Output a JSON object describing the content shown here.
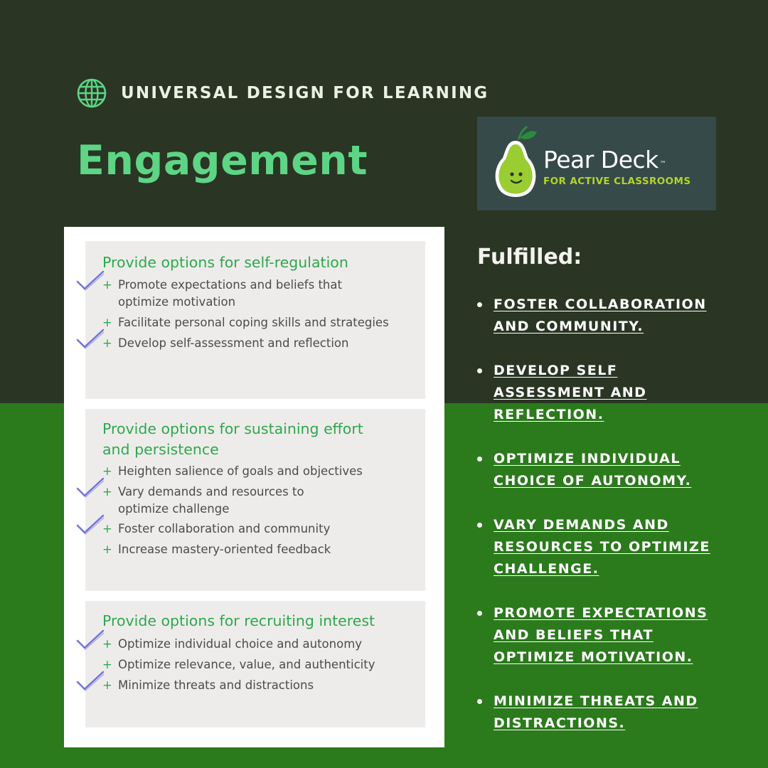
{
  "header": {
    "icon": "globe-icon",
    "label": "UNIVERSAL DESIGN FOR LEARNING"
  },
  "title": "Engagement",
  "logo": {
    "brand_name": "Pear Deck",
    "trademark": "™",
    "tagline": "FOR ACTIVE CLASSROOMS",
    "colors": {
      "pear": "#9acd32",
      "leaf": "#2b8a3e",
      "background": "#364a49",
      "tagline": "#b4d42a"
    }
  },
  "udl_panels": [
    {
      "heading_lines": [
        "Provide options for self-regulation"
      ],
      "items": [
        {
          "lines": [
            "Promote expectations and beliefs that",
            "optimize motivation"
          ],
          "checked": true
        },
        {
          "lines": [
            "Facilitate personal coping skills and strategies"
          ],
          "checked": false
        },
        {
          "lines": [
            "Develop self-assessment and reflection"
          ],
          "checked": true
        }
      ]
    },
    {
      "heading_lines": [
        "Provide options for sustaining effort",
        "and persistence"
      ],
      "items": [
        {
          "lines": [
            "Heighten salience of goals and objectives"
          ],
          "checked": false
        },
        {
          "lines": [
            "Vary demands and resources to",
            "optimize challenge"
          ],
          "checked": true
        },
        {
          "lines": [
            "Foster collaboration and community"
          ],
          "checked": true
        },
        {
          "lines": [
            "Increase mastery-oriented feedback"
          ],
          "checked": false
        }
      ]
    },
    {
      "heading_lines": [
        "Provide options for recruiting interest"
      ],
      "items": [
        {
          "lines": [
            "Optimize individual choice and autonomy"
          ],
          "checked": true
        },
        {
          "lines": [
            "Optimize relevance, value, and authenticity"
          ],
          "checked": false
        },
        {
          "lines": [
            "Minimize threats and distractions"
          ],
          "checked": true
        }
      ]
    }
  ],
  "bullet_symbol": "+",
  "fulfilled": {
    "title": "Fulfilled:",
    "items": [
      {
        "lines": [
          "FOSTER COLLABORATION",
          "AND COMMUNITY."
        ]
      },
      {
        "lines": [
          "DEVELOP SELF",
          "ASSESSMENT AND",
          "REFLECTION."
        ]
      },
      {
        "lines": [
          "OPTIMIZE INDIVIDUAL",
          "CHOICE OF AUTONOMY."
        ]
      },
      {
        "lines": [
          "VARY DEMANDS AND",
          "RESOURCES TO OPTIMIZE",
          "CHALLENGE."
        ]
      },
      {
        "lines": [
          "PROMOTE EXPECTATIONS",
          "AND BELIEFS THAT",
          "OPTIMIZE MOTIVATION."
        ]
      },
      {
        "lines": [
          "MINIMIZE THREATS AND",
          "DISTRACTIONS."
        ]
      }
    ]
  },
  "colors": {
    "top_background": "#2a3524",
    "bottom_background": "#2b7a1c",
    "title": "#5dd585",
    "udl_heading": "#2ea84c",
    "checkmark": "#6f72d8"
  }
}
